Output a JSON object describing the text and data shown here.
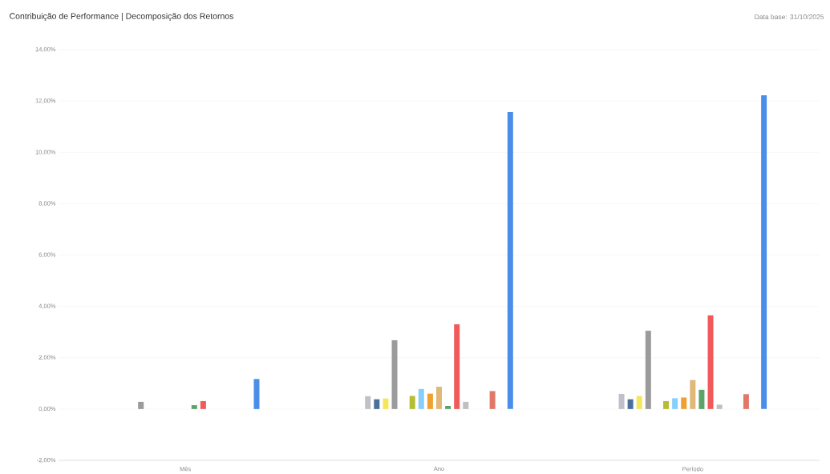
{
  "chart_data": {
    "type": "bar",
    "title": "Contribuição de Performance  |  Decomposição dos Retornos",
    "annotations": [
      "Data base: 31/10/2025"
    ],
    "categories": [
      "Mês",
      "Ano",
      "Período"
    ],
    "series": [
      {
        "color": "#c0c0c8",
        "values": [
          0,
          0.5,
          0.59
        ]
      },
      {
        "color": "#4a6f9a",
        "values": [
          0,
          0.38,
          0.38
        ]
      },
      {
        "color": "#f5e65a",
        "values": [
          0,
          0.41,
          0.51
        ]
      },
      {
        "color": "#9b9b9b",
        "values": [
          0.28,
          2.68,
          3.05
        ]
      },
      {
        "color": "#6a8a6a",
        "values": [
          0,
          0,
          0
        ]
      },
      {
        "color": "#b5bd35",
        "values": [
          0,
          0.51,
          0.31
        ]
      },
      {
        "color": "#87cefa",
        "values": [
          0,
          0.78,
          0.42
        ]
      },
      {
        "color": "#f0a030",
        "values": [
          0,
          0.6,
          0.45
        ]
      },
      {
        "color": "#e0b878",
        "values": [
          0,
          0.87,
          1.13
        ]
      },
      {
        "color": "#5aa46a",
        "values": [
          0.15,
          0.12,
          0.75
        ]
      },
      {
        "color": "#f05a5a",
        "values": [
          0.31,
          3.3,
          3.65
        ]
      },
      {
        "color": "#c0bfc0",
        "values": [
          0,
          0.28,
          0.17
        ]
      },
      {
        "color": "#8a8a8a",
        "values": [
          0,
          0,
          0
        ]
      },
      {
        "color": "#7ab0d8",
        "values": [
          0,
          0,
          0
        ]
      },
      {
        "color": "#e07868",
        "values": [
          0,
          0.7,
          0.58
        ]
      },
      {
        "color": "#a0a0a0",
        "values": [
          0,
          0,
          0
        ]
      },
      {
        "color": "#4a8ee8",
        "values": [
          1.17,
          11.57,
          12.22
        ]
      }
    ],
    "ylim": [
      -2,
      14
    ],
    "yticks": [
      {
        "value": -2,
        "label": "-2,00%"
      },
      {
        "value": 0,
        "label": "0,00%"
      },
      {
        "value": 2,
        "label": "2,00%"
      },
      {
        "value": 4,
        "label": "4,00%"
      },
      {
        "value": 6,
        "label": "6,00%"
      },
      {
        "value": 8,
        "label": "8,00%"
      },
      {
        "value": 10,
        "label": "10,00%"
      },
      {
        "value": 12,
        "label": "12,00%"
      },
      {
        "value": 14,
        "label": "14,00%"
      }
    ],
    "grid": "y"
  }
}
